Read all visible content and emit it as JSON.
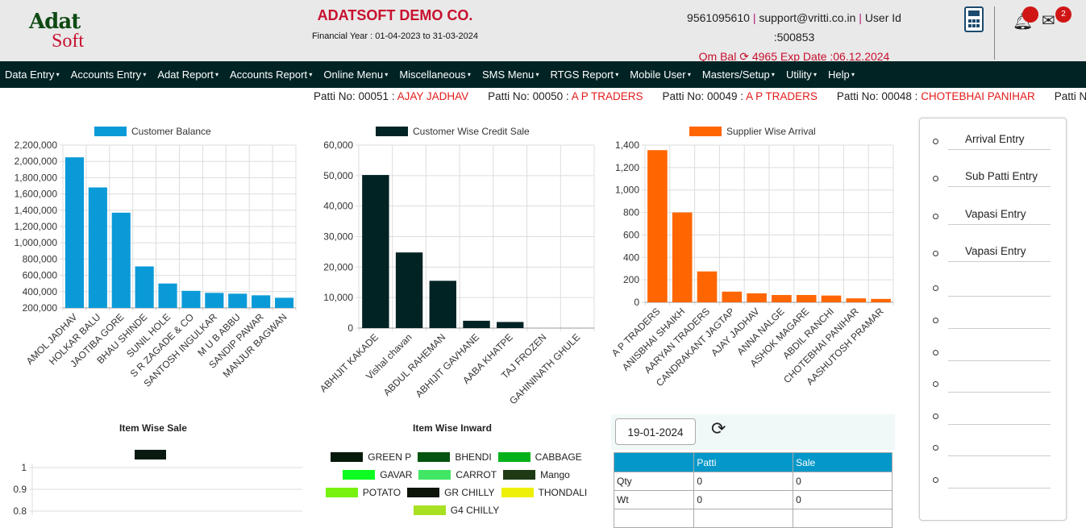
{
  "header": {
    "logo_top": "Adat",
    "logo_bottom": "Soft",
    "company": "ADATSOFT DEMO CO.",
    "financial_year": "Financial Year : 01-04-2023 to 31-03-2024",
    "phone": "9561095610",
    "email": "support@vritti.co.in",
    "user_id_label": "User Id",
    "user_id": ":500853",
    "qm_bal_label": "Qm Bal",
    "qm_bal": "4965",
    "exp_date": "Exp Date :06.12.2024",
    "mail_count": "2"
  },
  "nav": [
    "Data Entry",
    "Accounts Entry",
    "Adat Report",
    "Accounts Report",
    "Online Menu",
    "Miscellaneous",
    "SMS Menu",
    "RTGS Report",
    "Mobile User",
    "Masters/Setup",
    "Utility",
    "Help"
  ],
  "ticker": [
    {
      "no": "Patti No: 00051 : ",
      "name": "AJAY JADHAV"
    },
    {
      "no": "Patti No: 00050 : ",
      "name": "A P TRADERS"
    },
    {
      "no": "Patti No: 00049 : ",
      "name": "A P TRADERS"
    },
    {
      "no": "Patti No: 00048 : ",
      "name": "CHOTEBHAI PANIHAR"
    },
    {
      "no": "Patti No",
      "name": ""
    }
  ],
  "right_panel": [
    "Arrival Entry",
    "Sub Patti Entry",
    "Vapasi Entry",
    "Vapasi Entry",
    "",
    "",
    "",
    "",
    "",
    "",
    ""
  ],
  "date_panel": {
    "date": "19-01-2024",
    "table": {
      "headers": [
        "",
        "Patti",
        "Sale"
      ],
      "rows": [
        [
          "Qty",
          "0",
          "0"
        ],
        [
          "Wt",
          "0",
          "0"
        ],
        [
          "",
          "",
          ""
        ]
      ]
    }
  },
  "chart_data": [
    {
      "type": "bar",
      "title": "Customer Balance",
      "color": "#0b9ad8",
      "ylim": [
        200000,
        2200000
      ],
      "ystep": 200000,
      "categories": [
        "AMOL JADHAV",
        "HOLKAR BALU",
        "JAOTIBA GORE",
        "BHAU SHINDE",
        "SUNIL HOLE",
        "S R ZAGADE & CO",
        "SANTOSH INGULKAR",
        "M U B ABBU",
        "SANDIP PAWAR",
        "MANJUR BAGWAN"
      ],
      "values": [
        2050000,
        1680000,
        1370000,
        710000,
        500000,
        410000,
        385000,
        375000,
        355000,
        325000
      ]
    },
    {
      "type": "bar",
      "title": "Customer Wise Credit Sale",
      "color": "#012324",
      "ylim": [
        0,
        60000
      ],
      "ystep": 10000,
      "categories": [
        "ABHIJIT KAKADE",
        "Vishal chavan",
        "ABDUL RAHEMAN",
        "ABHIJIT GAVHANE",
        "AABA KHATPE",
        "TAJ FROZEN",
        "GAHININATH GHULE"
      ],
      "values": [
        50200,
        24800,
        15500,
        2400,
        2000,
        0,
        0
      ]
    },
    {
      "type": "bar",
      "title": "Supplier Wise Arrival",
      "color": "#ff6600",
      "ylim": [
        0,
        1400
      ],
      "ystep": 200,
      "categories": [
        "A P TRADERS",
        "ANISBHAI SHAIKH",
        "AARYAN TRADERS",
        "CANDRAKANT JAGTAP",
        "AJAY JADHAV",
        "ANNA NALGE",
        "ASHOK MAGARE",
        "ABDIL RANCHI",
        "CHOTEBHAI PANIHAR",
        "AASHUTOSH PRAMAR"
      ],
      "values": [
        1355,
        800,
        275,
        95,
        80,
        65,
        65,
        60,
        35,
        30
      ]
    },
    {
      "type": "bar",
      "title": "Item Wise Sale",
      "color": "#0a1a10",
      "yticks": [
        "1",
        "0.9",
        "0.8"
      ],
      "categories": [],
      "values": []
    },
    {
      "type": "pie",
      "title": "Item Wise Inward",
      "legend": [
        {
          "label": "GREEN P",
          "color": "#061a0c"
        },
        {
          "label": "BHENDI",
          "color": "#045311"
        },
        {
          "label": "CABBAGE",
          "color": "#03b21a"
        },
        {
          "label": "GAVAR",
          "color": "#0dfc22"
        },
        {
          "label": "CARROT",
          "color": "#41e665"
        },
        {
          "label": "Mango",
          "color": "#1e3a14"
        },
        {
          "label": "POTATO",
          "color": "#77f20f"
        },
        {
          "label": "GR CHILLY",
          "color": "#0c1408"
        },
        {
          "label": "THONDALI",
          "color": "#eef00a"
        },
        {
          "label": "G4 CHILLY",
          "color": "#a8e022"
        }
      ],
      "values": []
    }
  ]
}
